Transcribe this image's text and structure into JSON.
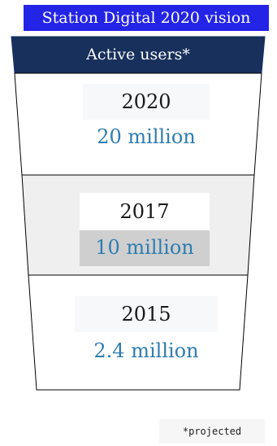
{
  "banner": {
    "title": "Station Digital 2020 vision"
  },
  "funnel": {
    "header": "Active users*",
    "tiers": [
      {
        "year": "2020",
        "value": "20 million"
      },
      {
        "year": "2017",
        "value": "10 million"
      },
      {
        "year": "2015",
        "value": "2.4 million"
      }
    ]
  },
  "footnote": "*projected",
  "colors": {
    "banner": "#2424e6",
    "header": "#17305c",
    "value_text": "#2e7db0",
    "middle_tier": "#efefef"
  }
}
